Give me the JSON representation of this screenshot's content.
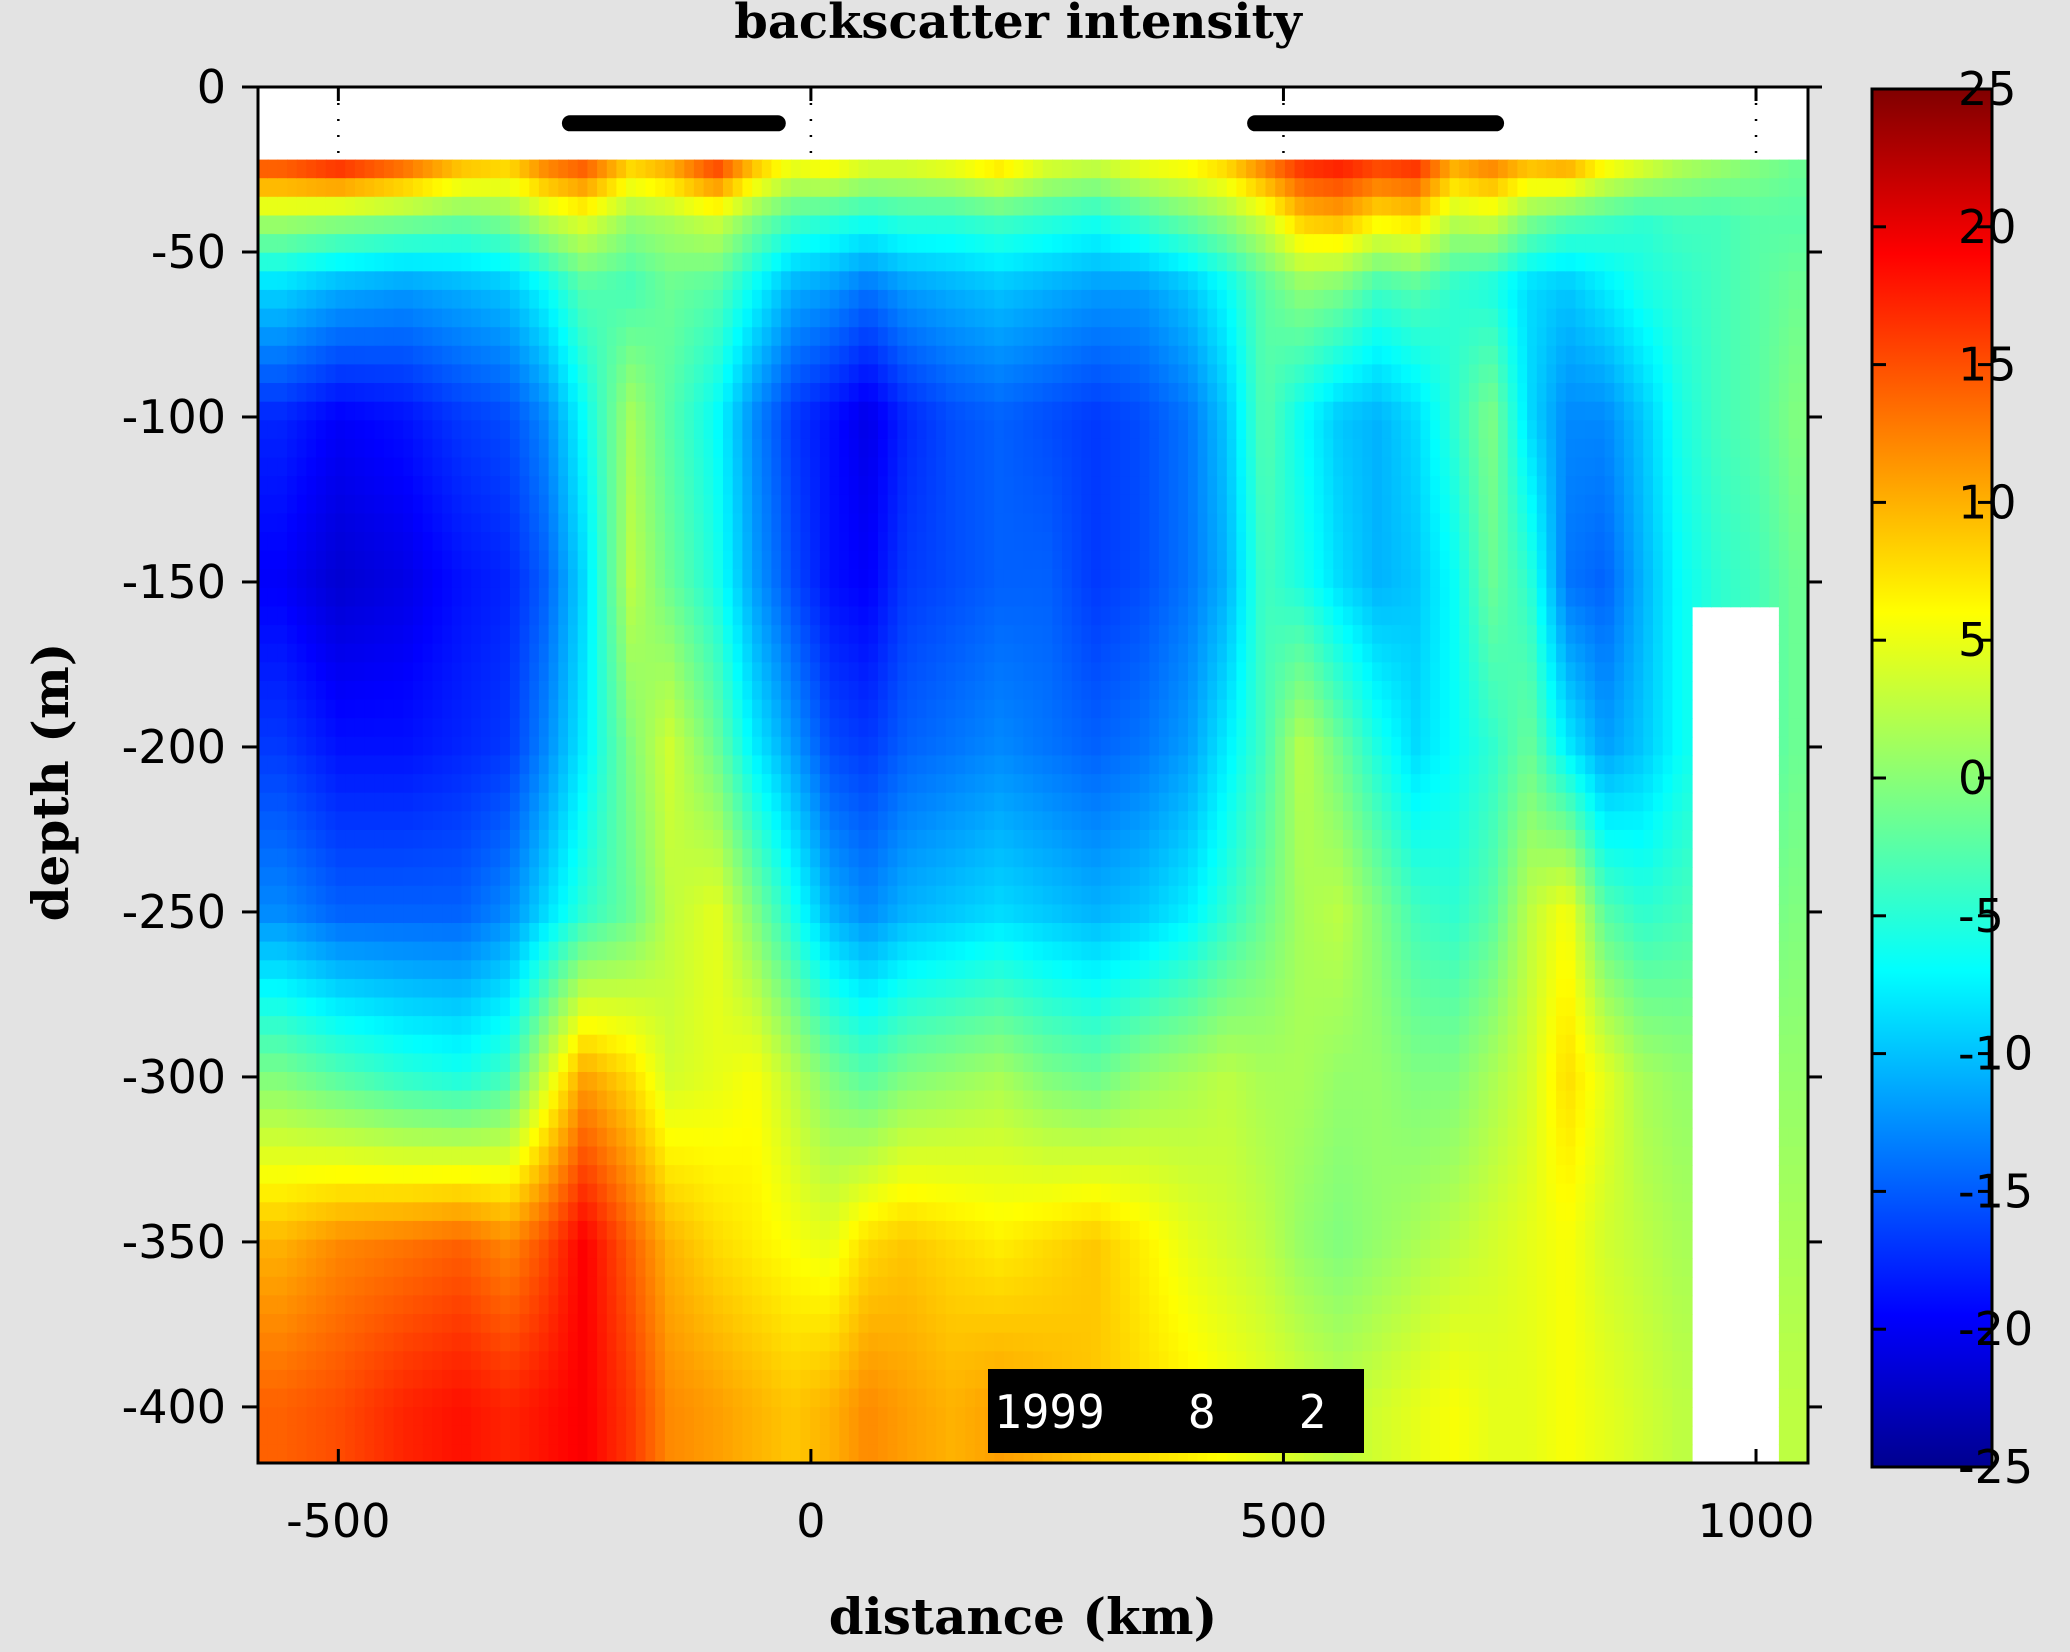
{
  "chart_data": {
    "type": "heatmap",
    "title": "backscatter intensity",
    "xlabel": "distance (km)",
    "ylabel": "depth (m)",
    "xlim": [
      -585,
      1055
    ],
    "ylim": [
      -417,
      0
    ],
    "x_ticks": [
      -500,
      0,
      500,
      1000
    ],
    "y_ticks": [
      0,
      -50,
      -100,
      -150,
      -200,
      -250,
      -300,
      -350,
      -400
    ],
    "color_scale": {
      "name": "jet",
      "range": [
        -25,
        25
      ],
      "ticks": [
        25,
        20,
        15,
        10,
        5,
        0,
        -5,
        -10,
        -15,
        -20,
        -25
      ]
    },
    "date_label": "1999   8   2",
    "data_top_depth": -22,
    "missing_region_note": "no data near 930-1020 km below 160 m",
    "station_segments": [
      {
        "x_start": -255,
        "x_end": -35
      },
      {
        "x_start": 470,
        "x_end": 725
      }
    ],
    "profile_x": [
      -560,
      -500,
      -430,
      -370,
      -320,
      -280,
      -240,
      -190,
      -150,
      -100,
      -60,
      -20,
      20,
      60,
      100,
      150,
      200,
      250,
      300,
      350,
      400,
      440,
      480,
      520,
      560,
      600,
      640,
      680,
      720,
      760,
      800,
      840,
      880,
      920,
      960,
      1000,
      1040
    ],
    "profile_depths": [
      -25,
      -40,
      -60,
      -100,
      -150,
      -200,
      -250,
      -300,
      -350,
      -400
    ],
    "values": [
      [
        14,
        16,
        13,
        9,
        8,
        12,
        14,
        8,
        10,
        15,
        9,
        5,
        6,
        4,
        4,
        5,
        7,
        4,
        3,
        5,
        6,
        8,
        12,
        16,
        17,
        15,
        16,
        10,
        12,
        9,
        10,
        6,
        4,
        2,
        1,
        0,
        -1
      ],
      [
        2,
        1,
        0,
        -1,
        0,
        3,
        5,
        1,
        2,
        4,
        0,
        -3,
        -4,
        -5,
        -4,
        -4,
        -3,
        -4,
        -5,
        -3,
        -1,
        1,
        4,
        9,
        10,
        7,
        8,
        3,
        4,
        0,
        -2,
        -3,
        -4,
        -3,
        -3,
        -2,
        -2
      ],
      [
        -8,
        -10,
        -11,
        -10,
        -9,
        -6,
        -2,
        -3,
        -1,
        -2,
        -6,
        -10,
        -11,
        -13,
        -11,
        -10,
        -9,
        -10,
        -11,
        -11,
        -9,
        -6,
        -2,
        1,
        0,
        -3,
        -2,
        -4,
        -5,
        -8,
        -9,
        -7,
        -5,
        -4,
        -3,
        -2,
        -1
      ],
      [
        -17,
        -19,
        -18,
        -16,
        -15,
        -12,
        -6,
        2,
        -2,
        -6,
        -12,
        -16,
        -18,
        -20,
        -17,
        -15,
        -14,
        -15,
        -16,
        -15,
        -13,
        -9,
        -2,
        -6,
        -9,
        -10,
        -8,
        -4,
        0,
        -8,
        -12,
        -12,
        -9,
        -5,
        -3,
        -2,
        0
      ],
      [
        -19,
        -21,
        -20,
        -18,
        -17,
        -14,
        -8,
        3,
        -1,
        -5,
        -11,
        -15,
        -18,
        -19,
        -16,
        -15,
        -14,
        -14,
        -16,
        -15,
        -13,
        -10,
        -3,
        -5,
        -8,
        -10,
        -9,
        -6,
        -1,
        -4,
        -13,
        -14,
        -10,
        -6,
        -4,
        -3,
        -1
      ],
      [
        -16,
        -18,
        -18,
        -17,
        -16,
        -12,
        -7,
        0,
        4,
        -1,
        -7,
        -11,
        -15,
        -16,
        -14,
        -13,
        -12,
        -13,
        -14,
        -13,
        -11,
        -7,
        -3,
        3,
        -1,
        -5,
        -8,
        -6,
        -4,
        -1,
        -7,
        -11,
        -9,
        -6,
        -4,
        -3,
        -1
      ],
      [
        -12,
        -14,
        -14,
        -14,
        -12,
        -8,
        -4,
        -1,
        3,
        5,
        0,
        -5,
        -10,
        -12,
        -10,
        -9,
        -8,
        -9,
        -10,
        -9,
        -7,
        -4,
        -1,
        2,
        3,
        0,
        -3,
        -4,
        -2,
        3,
        6,
        -2,
        -4,
        -3,
        -2,
        -1,
        0
      ],
      [
        0,
        -2,
        -4,
        -5,
        -3,
        4,
        11,
        8,
        4,
        5,
        6,
        3,
        0,
        -2,
        0,
        1,
        2,
        0,
        -1,
        1,
        2,
        3,
        2,
        2,
        1,
        1,
        0,
        0,
        2,
        4,
        8,
        5,
        2,
        1,
        1,
        1,
        1
      ],
      [
        10,
        12,
        13,
        14,
        12,
        15,
        19,
        14,
        10,
        8,
        7,
        6,
        5,
        8,
        9,
        8,
        7,
        8,
        9,
        7,
        5,
        4,
        3,
        1,
        0,
        1,
        2,
        3,
        4,
        5,
        6,
        4,
        3,
        2,
        2,
        2,
        2
      ],
      [
        14,
        15,
        17,
        18,
        17,
        18,
        19,
        16,
        12,
        11,
        10,
        9,
        10,
        12,
        11,
        10,
        11,
        10,
        9,
        8,
        7,
        6,
        5,
        4,
        3,
        4,
        5,
        6,
        5,
        5,
        6,
        5,
        4,
        3,
        3,
        3,
        3
      ]
    ]
  }
}
